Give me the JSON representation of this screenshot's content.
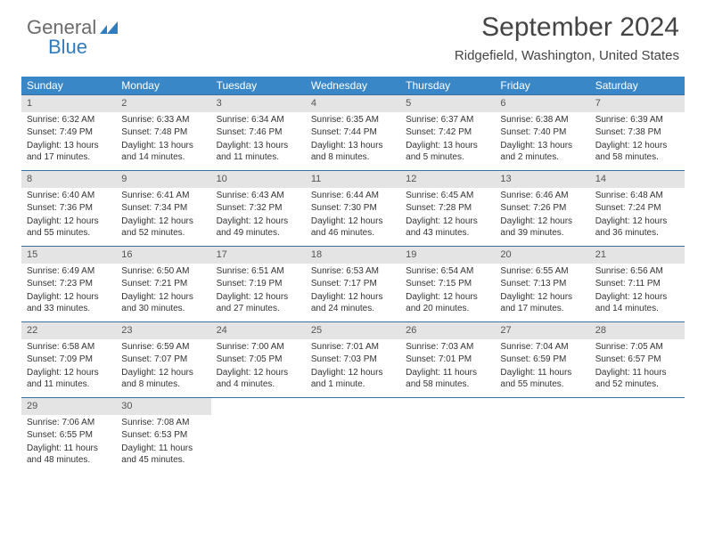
{
  "logo": {
    "word1": "General",
    "word2": "Blue"
  },
  "title": "September 2024",
  "subtitle": "Ridgefield, Washington, United States",
  "colors": {
    "header_bg": "#3a87c8",
    "week_border": "#3a6fa3",
    "date_row_bg": "#e4e4e4",
    "logo_blue": "#2f7dbf"
  },
  "dayNames": [
    "Sunday",
    "Monday",
    "Tuesday",
    "Wednesday",
    "Thursday",
    "Friday",
    "Saturday"
  ],
  "weeks": [
    [
      {
        "date": "1",
        "sunrise": "Sunrise: 6:32 AM",
        "sunset": "Sunset: 7:49 PM",
        "daylight": "Daylight: 13 hours and 17 minutes."
      },
      {
        "date": "2",
        "sunrise": "Sunrise: 6:33 AM",
        "sunset": "Sunset: 7:48 PM",
        "daylight": "Daylight: 13 hours and 14 minutes."
      },
      {
        "date": "3",
        "sunrise": "Sunrise: 6:34 AM",
        "sunset": "Sunset: 7:46 PM",
        "daylight": "Daylight: 13 hours and 11 minutes."
      },
      {
        "date": "4",
        "sunrise": "Sunrise: 6:35 AM",
        "sunset": "Sunset: 7:44 PM",
        "daylight": "Daylight: 13 hours and 8 minutes."
      },
      {
        "date": "5",
        "sunrise": "Sunrise: 6:37 AM",
        "sunset": "Sunset: 7:42 PM",
        "daylight": "Daylight: 13 hours and 5 minutes."
      },
      {
        "date": "6",
        "sunrise": "Sunrise: 6:38 AM",
        "sunset": "Sunset: 7:40 PM",
        "daylight": "Daylight: 13 hours and 2 minutes."
      },
      {
        "date": "7",
        "sunrise": "Sunrise: 6:39 AM",
        "sunset": "Sunset: 7:38 PM",
        "daylight": "Daylight: 12 hours and 58 minutes."
      }
    ],
    [
      {
        "date": "8",
        "sunrise": "Sunrise: 6:40 AM",
        "sunset": "Sunset: 7:36 PM",
        "daylight": "Daylight: 12 hours and 55 minutes."
      },
      {
        "date": "9",
        "sunrise": "Sunrise: 6:41 AM",
        "sunset": "Sunset: 7:34 PM",
        "daylight": "Daylight: 12 hours and 52 minutes."
      },
      {
        "date": "10",
        "sunrise": "Sunrise: 6:43 AM",
        "sunset": "Sunset: 7:32 PM",
        "daylight": "Daylight: 12 hours and 49 minutes."
      },
      {
        "date": "11",
        "sunrise": "Sunrise: 6:44 AM",
        "sunset": "Sunset: 7:30 PM",
        "daylight": "Daylight: 12 hours and 46 minutes."
      },
      {
        "date": "12",
        "sunrise": "Sunrise: 6:45 AM",
        "sunset": "Sunset: 7:28 PM",
        "daylight": "Daylight: 12 hours and 43 minutes."
      },
      {
        "date": "13",
        "sunrise": "Sunrise: 6:46 AM",
        "sunset": "Sunset: 7:26 PM",
        "daylight": "Daylight: 12 hours and 39 minutes."
      },
      {
        "date": "14",
        "sunrise": "Sunrise: 6:48 AM",
        "sunset": "Sunset: 7:24 PM",
        "daylight": "Daylight: 12 hours and 36 minutes."
      }
    ],
    [
      {
        "date": "15",
        "sunrise": "Sunrise: 6:49 AM",
        "sunset": "Sunset: 7:23 PM",
        "daylight": "Daylight: 12 hours and 33 minutes."
      },
      {
        "date": "16",
        "sunrise": "Sunrise: 6:50 AM",
        "sunset": "Sunset: 7:21 PM",
        "daylight": "Daylight: 12 hours and 30 minutes."
      },
      {
        "date": "17",
        "sunrise": "Sunrise: 6:51 AM",
        "sunset": "Sunset: 7:19 PM",
        "daylight": "Daylight: 12 hours and 27 minutes."
      },
      {
        "date": "18",
        "sunrise": "Sunrise: 6:53 AM",
        "sunset": "Sunset: 7:17 PM",
        "daylight": "Daylight: 12 hours and 24 minutes."
      },
      {
        "date": "19",
        "sunrise": "Sunrise: 6:54 AM",
        "sunset": "Sunset: 7:15 PM",
        "daylight": "Daylight: 12 hours and 20 minutes."
      },
      {
        "date": "20",
        "sunrise": "Sunrise: 6:55 AM",
        "sunset": "Sunset: 7:13 PM",
        "daylight": "Daylight: 12 hours and 17 minutes."
      },
      {
        "date": "21",
        "sunrise": "Sunrise: 6:56 AM",
        "sunset": "Sunset: 7:11 PM",
        "daylight": "Daylight: 12 hours and 14 minutes."
      }
    ],
    [
      {
        "date": "22",
        "sunrise": "Sunrise: 6:58 AM",
        "sunset": "Sunset: 7:09 PM",
        "daylight": "Daylight: 12 hours and 11 minutes."
      },
      {
        "date": "23",
        "sunrise": "Sunrise: 6:59 AM",
        "sunset": "Sunset: 7:07 PM",
        "daylight": "Daylight: 12 hours and 8 minutes."
      },
      {
        "date": "24",
        "sunrise": "Sunrise: 7:00 AM",
        "sunset": "Sunset: 7:05 PM",
        "daylight": "Daylight: 12 hours and 4 minutes."
      },
      {
        "date": "25",
        "sunrise": "Sunrise: 7:01 AM",
        "sunset": "Sunset: 7:03 PM",
        "daylight": "Daylight: 12 hours and 1 minute."
      },
      {
        "date": "26",
        "sunrise": "Sunrise: 7:03 AM",
        "sunset": "Sunset: 7:01 PM",
        "daylight": "Daylight: 11 hours and 58 minutes."
      },
      {
        "date": "27",
        "sunrise": "Sunrise: 7:04 AM",
        "sunset": "Sunset: 6:59 PM",
        "daylight": "Daylight: 11 hours and 55 minutes."
      },
      {
        "date": "28",
        "sunrise": "Sunrise: 7:05 AM",
        "sunset": "Sunset: 6:57 PM",
        "daylight": "Daylight: 11 hours and 52 minutes."
      }
    ],
    [
      {
        "date": "29",
        "sunrise": "Sunrise: 7:06 AM",
        "sunset": "Sunset: 6:55 PM",
        "daylight": "Daylight: 11 hours and 48 minutes."
      },
      {
        "date": "30",
        "sunrise": "Sunrise: 7:08 AM",
        "sunset": "Sunset: 6:53 PM",
        "daylight": "Daylight: 11 hours and 45 minutes."
      }
    ]
  ]
}
